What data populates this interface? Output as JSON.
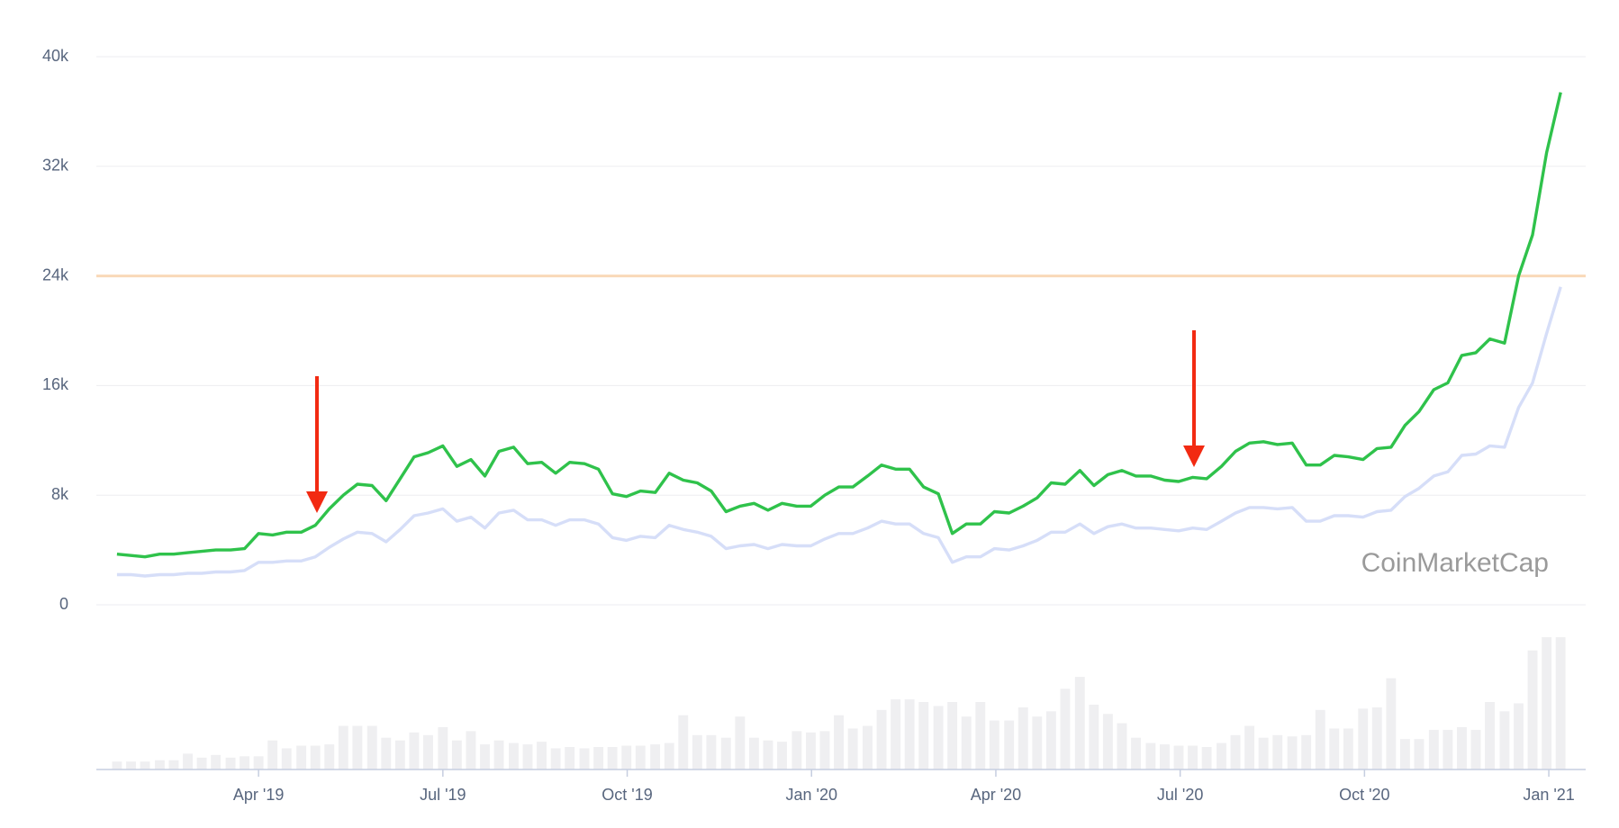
{
  "chart_data": {
    "type": "line",
    "watermark": "CoinMarketCap",
    "x": [
      2019.058,
      2019.077,
      2019.096,
      2019.116,
      2019.135,
      2019.154,
      2019.173,
      2019.192,
      2019.212,
      2019.231,
      2019.25,
      2019.269,
      2019.288,
      2019.308,
      2019.327,
      2019.346,
      2019.365,
      2019.384,
      2019.404,
      2019.423,
      2019.442,
      2019.461,
      2019.48,
      2019.5,
      2019.519,
      2019.538,
      2019.557,
      2019.576,
      2019.596,
      2019.615,
      2019.634,
      2019.653,
      2019.672,
      2019.692,
      2019.711,
      2019.73,
      2019.749,
      2019.768,
      2019.788,
      2019.807,
      2019.826,
      2019.845,
      2019.864,
      2019.884,
      2019.903,
      2019.922,
      2019.941,
      2019.96,
      2019.98,
      2019.999,
      2020.018,
      2020.037,
      2020.056,
      2020.076,
      2020.095,
      2020.114,
      2020.133,
      2020.152,
      2020.172,
      2020.191,
      2020.21,
      2020.229,
      2020.248,
      2020.268,
      2020.287,
      2020.306,
      2020.325,
      2020.344,
      2020.364,
      2020.383,
      2020.402,
      2020.421,
      2020.44,
      2020.46,
      2020.479,
      2020.498,
      2020.517,
      2020.536,
      2020.556,
      2020.575,
      2020.594,
      2020.613,
      2020.632,
      2020.652,
      2020.671,
      2020.69,
      2020.709,
      2020.728,
      2020.748,
      2020.767,
      2020.786,
      2020.805,
      2020.824,
      2020.844,
      2020.863,
      2020.882,
      2020.901,
      2020.92,
      2020.94,
      2020.959,
      2020.978,
      2020.997,
      2021.016
    ],
    "series": [
      {
        "color": "#2fc24b",
        "values": [
          3700,
          3600,
          3500,
          3700,
          3700,
          3800,
          3900,
          4000,
          4000,
          4100,
          5200,
          5100,
          5300,
          5300,
          5800,
          7000,
          8000,
          8800,
          8700,
          7600,
          9200,
          10800,
          11100,
          11600,
          10100,
          10600,
          9400,
          11200,
          11500,
          10300,
          10400,
          9600,
          10400,
          10300,
          9900,
          8100,
          7900,
          8300,
          8200,
          9600,
          9100,
          8900,
          8300,
          6800,
          7200,
          7400,
          6900,
          7400,
          7200,
          7200,
          8000,
          8600,
          8600,
          9400,
          10200,
          9900,
          9900,
          8600,
          8100,
          5200,
          5900,
          5900,
          6800,
          6700,
          7200,
          7800,
          8900,
          8800,
          9800,
          8700,
          9500,
          9800,
          9400,
          9400,
          9100,
          9000,
          9300,
          9200,
          10100,
          11200,
          11800,
          11900,
          11700,
          11800,
          10200,
          10200,
          10900,
          10800,
          10600,
          11400,
          11500,
          13100,
          14100,
          15700,
          16200,
          18200,
          18400,
          19400,
          19100,
          24000,
          27000,
          33000,
          37400
        ]
      },
      {
        "color": "#d6def8",
        "values": [
          2200,
          2200,
          2100,
          2200,
          2200,
          2300,
          2300,
          2400,
          2400,
          2500,
          3100,
          3100,
          3200,
          3200,
          3500,
          4200,
          4800,
          5300,
          5200,
          4600,
          5500,
          6500,
          6700,
          7000,
          6100,
          6400,
          5600,
          6700,
          6900,
          6200,
          6200,
          5800,
          6200,
          6200,
          5900,
          4900,
          4700,
          5000,
          4900,
          5800,
          5500,
          5300,
          5000,
          4100,
          4300,
          4400,
          4100,
          4400,
          4300,
          4300,
          4800,
          5200,
          5200,
          5600,
          6100,
          5900,
          5900,
          5200,
          4900,
          3100,
          3500,
          3500,
          4100,
          4000,
          4300,
          4700,
          5300,
          5300,
          5900,
          5200,
          5700,
          5900,
          5600,
          5600,
          5500,
          5400,
          5600,
          5500,
          6100,
          6700,
          7100,
          7100,
          7000,
          7100,
          6100,
          6100,
          6500,
          6500,
          6400,
          6800,
          6900,
          7900,
          8500,
          9400,
          9700,
          10900,
          11000,
          11600,
          11500,
          14400,
          16200,
          19800,
          23200
        ]
      },
      {
        "type": "bar",
        "axis": "y2",
        "color": "#efeff1",
        "values": [
          6,
          6,
          6,
          7,
          7,
          12,
          9,
          11,
          9,
          10,
          10,
          22,
          16,
          18,
          18,
          19,
          33,
          33,
          33,
          24,
          22,
          28,
          26,
          32,
          22,
          29,
          19,
          22,
          20,
          19,
          21,
          16,
          17,
          16,
          17,
          17,
          18,
          18,
          19,
          20,
          41,
          26,
          26,
          24,
          40,
          24,
          22,
          21,
          29,
          28,
          29,
          41,
          31,
          33,
          45,
          53,
          53,
          51,
          48,
          51,
          40,
          51,
          37,
          37,
          47,
          40,
          44,
          61,
          70,
          49,
          42,
          35,
          24,
          20,
          19,
          18,
          18,
          17,
          20,
          26,
          33,
          24,
          26,
          25,
          26,
          45,
          31,
          31,
          46,
          47,
          69,
          23,
          23,
          30,
          30,
          32,
          30,
          51,
          44,
          50,
          90,
          100,
          100
        ]
      }
    ],
    "reference_line": {
      "value": 24000,
      "color": "#f9d9b8"
    },
    "xlim": [
      2019.03,
      2021.05
    ],
    "xticks": [
      {
        "value": 2019.25,
        "label": "Apr '19"
      },
      {
        "value": 2019.5,
        "label": "Jul '19"
      },
      {
        "value": 2019.75,
        "label": "Oct '19"
      },
      {
        "value": 2020,
        "label": "Jan '20"
      },
      {
        "value": 2020.25,
        "label": "Apr '20"
      },
      {
        "value": 2020.5,
        "label": "Jul '20"
      },
      {
        "value": 2020.75,
        "label": "Oct '20"
      },
      {
        "value": 2021,
        "label": "Jan '21"
      }
    ],
    "ylim": [
      0,
      40000
    ],
    "yticks": [
      0,
      {
        "value": 8000,
        "label": "8k"
      },
      {
        "value": 16000,
        "label": "16k"
      },
      {
        "value": 24000,
        "label": "24k"
      },
      {
        "value": 32000,
        "label": "32k"
      },
      {
        "value": 40000,
        "label": "40k"
      }
    ],
    "y2lim": [
      0,
      100
    ],
    "grid": true
  }
}
